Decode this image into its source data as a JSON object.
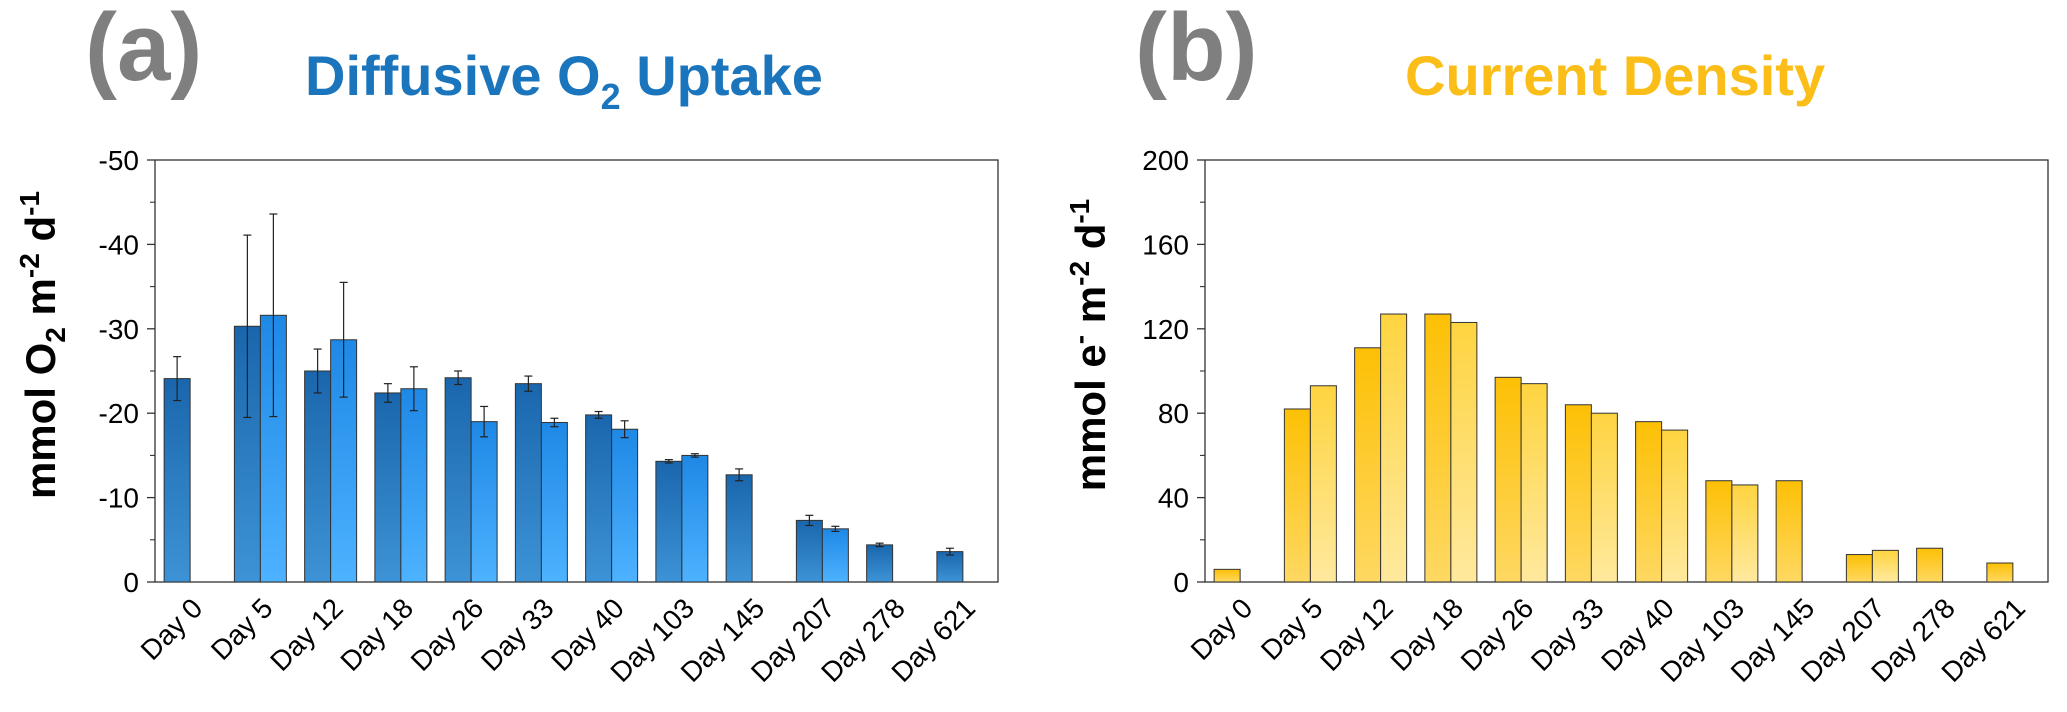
{
  "colors": {
    "letter": "#7f7f7f",
    "title_a": "#1b75bc",
    "title_b": "#fbbe18",
    "a_dark_top": "#1a66ad",
    "a_dark_bottom": "#3d93d6",
    "a_light_top": "#1e88e5",
    "a_light_bottom": "#4db2ff",
    "b_dark_top": "#fdc005",
    "b_dark_bottom": "#fed862",
    "b_light_top": "#fed440",
    "b_light_bottom": "#ffe99e"
  },
  "panels": {
    "a": {
      "letter": "(a)",
      "title_main": "Diffusive O",
      "title_sub": "2",
      "title_tail": " Uptake",
      "ylabel_parts": [
        "mmol O",
        "2",
        " m",
        "-2",
        " d",
        "-1"
      ]
    },
    "b": {
      "letter": "(b)",
      "title_main": "Current Density",
      "ylabel_parts": [
        "mmol e",
        "-",
        " m",
        "-2",
        " d",
        "-1"
      ]
    }
  },
  "chart_data": [
    {
      "type": "bar",
      "title": "Diffusive O2 Uptake",
      "ylabel": "mmol O2 m-2 d-1",
      "categories": [
        "Day 0",
        "Day 5",
        "Day 12",
        "Day 18",
        "Day 26",
        "Day 33",
        "Day 40",
        "Day 103",
        "Day 145",
        "Day 207",
        "Day 278",
        "Day 621"
      ],
      "ylim": [
        -50,
        0
      ],
      "y_inverted": true,
      "yticks": [
        -50,
        -40,
        -30,
        -20,
        -10,
        0
      ],
      "series": [
        {
          "values": [
            -24.1,
            -30.3,
            -25.0,
            -22.4,
            -24.2,
            -23.5,
            -19.8,
            -14.3,
            -12.7,
            -7.3,
            -4.4,
            -3.6
          ],
          "errors": [
            2.6,
            10.8,
            2.6,
            1.1,
            0.8,
            0.9,
            0.4,
            0.2,
            0.7,
            0.6,
            0.2,
            0.4
          ]
        },
        {
          "values": [
            null,
            -31.6,
            -28.7,
            -22.9,
            -19.0,
            -18.9,
            -18.1,
            -15.0,
            null,
            -6.3,
            null,
            null
          ],
          "errors": [
            null,
            12.0,
            6.8,
            2.6,
            1.8,
            0.5,
            1.0,
            0.2,
            null,
            0.3,
            null,
            null
          ]
        }
      ]
    },
    {
      "type": "bar",
      "title": "Current Density",
      "ylabel": "mmol e- m-2 d-1",
      "categories": [
        "Day 0",
        "Day 5",
        "Day 12",
        "Day 18",
        "Day 26",
        "Day 33",
        "Day 40",
        "Day 103",
        "Day 145",
        "Day 207",
        "Day 278",
        "Day 621"
      ],
      "ylim": [
        0,
        200
      ],
      "yticks": [
        0,
        40,
        80,
        120,
        160,
        200
      ],
      "series": [
        {
          "values": [
            6,
            82,
            111,
            127,
            97,
            84,
            76,
            48,
            48,
            13,
            16,
            9
          ]
        },
        {
          "values": [
            null,
            93,
            127,
            123,
            94,
            80,
            72,
            46,
            null,
            15,
            null,
            null
          ]
        }
      ]
    }
  ]
}
